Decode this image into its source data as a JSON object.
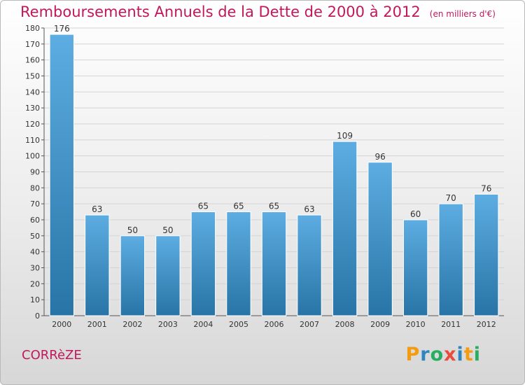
{
  "title": "Remboursements Annuels de la Dette de 2000 à 2012",
  "unit": "(en milliers d'€)",
  "region": "CORRèZE",
  "brand": {
    "letters": [
      "P",
      "r",
      "o",
      "x",
      "i",
      "t",
      "i"
    ],
    "colors": [
      "#f39c12",
      "#2e86c1",
      "#27ae60",
      "#e74c3c",
      "#2e86c1",
      "#f39c12",
      "#27ae60"
    ]
  },
  "colors": {
    "title": "#c2185b",
    "bar_top": "#5dade2",
    "bar_bottom": "#2874a6"
  },
  "chart_data": {
    "type": "bar",
    "categories": [
      "2000",
      "2001",
      "2002",
      "2003",
      "2004",
      "2005",
      "2006",
      "2007",
      "2008",
      "2009",
      "2010",
      "2011",
      "2012"
    ],
    "values": [
      176,
      63,
      50,
      50,
      65,
      65,
      65,
      63,
      109,
      96,
      60,
      70,
      76
    ],
    "ylim": [
      0,
      180
    ],
    "yticks": [
      0,
      10,
      20,
      30,
      40,
      50,
      60,
      70,
      80,
      90,
      100,
      110,
      120,
      130,
      140,
      150,
      160,
      170,
      180
    ],
    "grid": true
  }
}
